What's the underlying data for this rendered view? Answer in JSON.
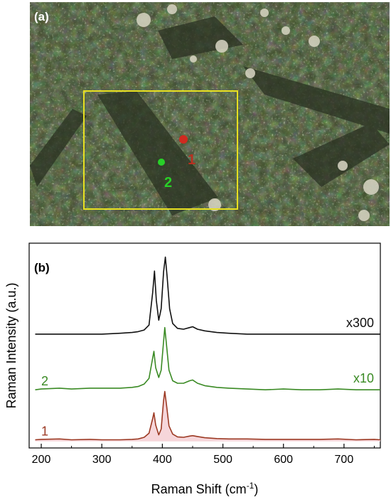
{
  "panel_a": {
    "label": "(a)",
    "colors": {
      "box": "#e8e020",
      "marker1": "#d02a20",
      "marker2": "#28d028"
    },
    "markers": [
      {
        "label": "1",
        "color": "#d02a20"
      },
      {
        "label": "2",
        "color": "#28d028"
      }
    ]
  },
  "chart_data": {
    "type": "line",
    "panel_label": "(b)",
    "xlabel_text": "Raman Shift (cm",
    "xlabel_sup": "-1",
    "xlabel_close": ")",
    "ylabel": "Raman Intensity (a.u.)",
    "xlim": [
      180,
      760
    ],
    "xticks": [
      200,
      300,
      400,
      500,
      600,
      700
    ],
    "yticks_shown": false,
    "grid": false,
    "series": [
      {
        "name": "1",
        "color": "#9c3a24",
        "fill": "#f6d6da",
        "baseline": 1.0,
        "peaks": [
          [
            386,
            3.3
          ],
          [
            404,
            5.9
          ],
          [
            450,
            0.55
          ]
        ],
        "x": [
          190,
          200,
          230,
          250,
          280,
          300,
          330,
          350,
          360,
          370,
          378,
          384,
          386,
          389,
          394,
          398,
          402,
          404,
          407,
          411,
          417,
          425,
          435,
          445,
          450,
          458,
          470,
          490,
          510,
          540,
          570,
          600,
          630,
          660,
          690,
          720,
          750,
          760
        ],
        "y": [
          1.0,
          1.05,
          1.1,
          1.0,
          1.05,
          1.0,
          1.0,
          1.05,
          1.1,
          1.3,
          1.8,
          3.6,
          4.3,
          2.8,
          1.6,
          2.3,
          5.8,
          6.9,
          5.2,
          2.7,
          1.7,
          1.35,
          1.3,
          1.45,
          1.5,
          1.4,
          1.25,
          1.15,
          1.1,
          1.1,
          1.05,
          1.05,
          1.05,
          1.05,
          1.1,
          1.0,
          1.05,
          1.0
        ]
      },
      {
        "name": "2",
        "scale_label": "x10",
        "color": "#3a8a24",
        "baseline": 7.0,
        "x": [
          190,
          200,
          230,
          250,
          280,
          300,
          330,
          350,
          360,
          370,
          378,
          384,
          386,
          389,
          394,
          398,
          402,
          404,
          407,
          411,
          417,
          425,
          435,
          445,
          450,
          458,
          470,
          490,
          510,
          540,
          570,
          600,
          630,
          660,
          690,
          720,
          750,
          760
        ],
        "y": [
          7.1,
          7.2,
          7.3,
          7.2,
          7.3,
          7.3,
          7.3,
          7.4,
          7.5,
          7.8,
          8.5,
          11.0,
          11.8,
          9.8,
          8.6,
          9.5,
          13.0,
          14.7,
          12.5,
          9.5,
          8.2,
          7.9,
          7.9,
          8.2,
          8.3,
          7.9,
          7.6,
          7.4,
          7.3,
          7.2,
          7.1,
          7.2,
          7.1,
          7.1,
          7.2,
          7.1,
          7.1,
          7.1
        ]
      },
      {
        "name": "",
        "scale_label": "x300",
        "color": "#111111",
        "baseline": 13.0,
        "x": [
          190,
          200,
          230,
          250,
          280,
          300,
          330,
          350,
          360,
          370,
          378,
          384,
          387,
          390,
          394,
          398,
          402,
          405,
          408,
          412,
          417,
          425,
          435,
          445,
          450,
          458,
          470,
          490,
          510,
          540,
          570,
          600,
          630,
          660,
          690,
          720,
          750,
          760
        ],
        "y": [
          13.9,
          13.9,
          13.9,
          13.9,
          13.9,
          13.9,
          14.0,
          14.1,
          14.2,
          14.4,
          15.0,
          19.0,
          21.6,
          18.0,
          15.6,
          17.0,
          21.5,
          23.3,
          20.8,
          17.0,
          15.2,
          14.6,
          14.5,
          14.7,
          14.8,
          14.5,
          14.3,
          14.1,
          14.0,
          13.9,
          13.9,
          13.9,
          13.9,
          13.9,
          13.9,
          13.9,
          13.9,
          13.9
        ]
      }
    ],
    "ylim": [
      0,
      25
    ]
  }
}
